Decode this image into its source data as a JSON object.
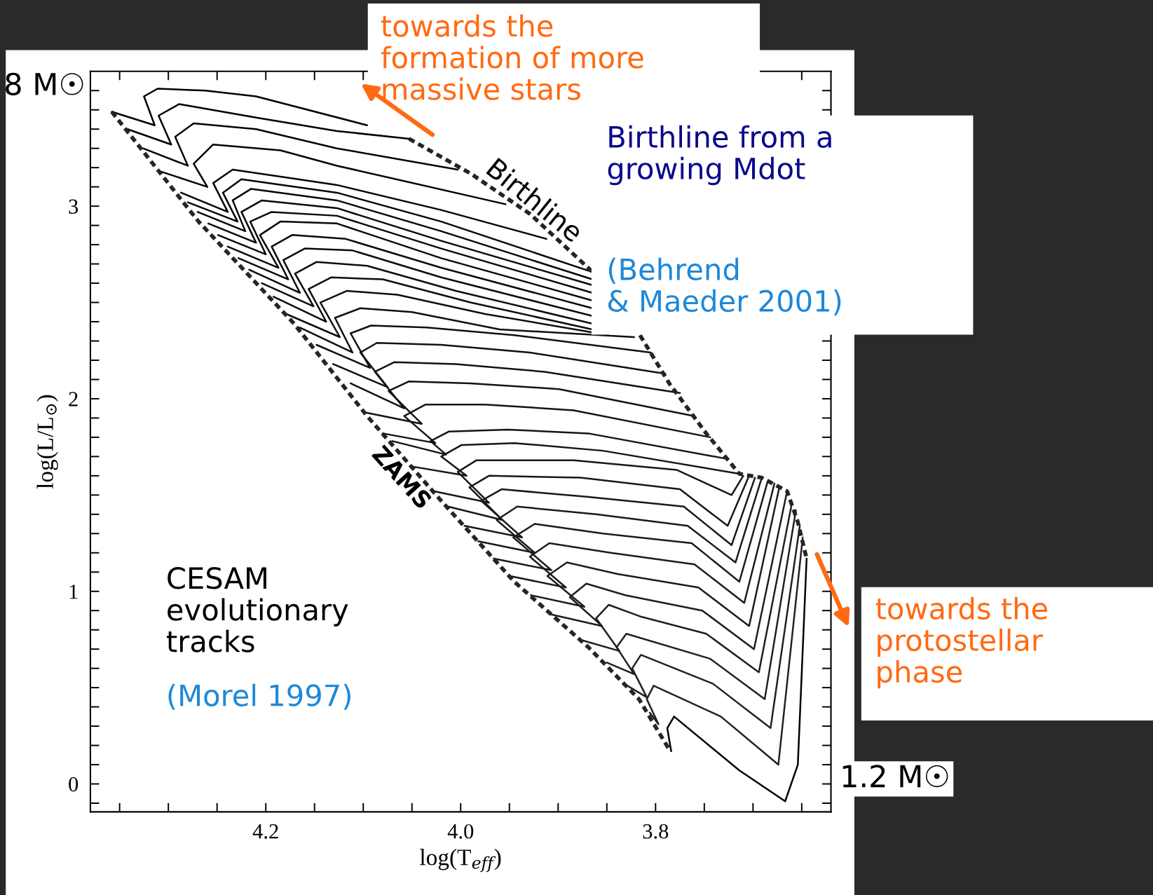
{
  "chart_data": {
    "type": "line",
    "xlabel": "log(T$_{eff}$)",
    "ylabel": "log(L/L$_{⊙}$)",
    "line_style": "solid",
    "xlim": [
      4.38,
      3.62
    ],
    "ylim": [
      -0.145,
      3.7
    ],
    "xticks": [
      {
        "value": 4.35,
        "label": null
      },
      {
        "value": 4.3,
        "label": null
      },
      {
        "value": 4.25,
        "label": null
      },
      4.2,
      {
        "value": 4.15,
        "label": null
      },
      {
        "value": 4.1,
        "label": null
      },
      {
        "value": 4.05,
        "label": null
      },
      {
        "value": 4.0,
        "label": "4.0"
      },
      {
        "value": 3.95,
        "label": null
      },
      {
        "value": 3.9,
        "label": null
      },
      {
        "value": 3.85,
        "label": null
      },
      3.8,
      {
        "value": 3.75,
        "label": null
      },
      {
        "value": 3.7,
        "label": null
      },
      {
        "value": 3.65,
        "label": null
      }
    ],
    "yticks": [
      {
        "value": -0.1,
        "label": null
      },
      0,
      {
        "value": 0.1,
        "label": null
      },
      {
        "value": 0.2,
        "label": null
      },
      {
        "value": 0.3,
        "label": null
      },
      {
        "value": 0.4,
        "label": null
      },
      {
        "value": 0.5,
        "label": null
      },
      {
        "value": 0.6,
        "label": null
      },
      {
        "value": 0.7,
        "label": null
      },
      {
        "value": 0.8,
        "label": null
      },
      {
        "value": 0.9,
        "label": null
      },
      1,
      {
        "value": 1.1,
        "label": null
      },
      {
        "value": 1.2,
        "label": null
      },
      {
        "value": 1.3,
        "label": null
      },
      {
        "value": 1.4,
        "label": null
      },
      {
        "value": 1.5,
        "label": null
      },
      {
        "value": 1.6,
        "label": null
      },
      {
        "value": 1.7,
        "label": null
      },
      {
        "value": 1.8,
        "label": null
      },
      {
        "value": 1.9,
        "label": null
      },
      2,
      {
        "value": 2.1,
        "label": null
      },
      {
        "value": 2.2,
        "label": null
      },
      {
        "value": 2.3,
        "label": null
      },
      {
        "value": 2.4,
        "label": null
      },
      {
        "value": 2.5,
        "label": null
      },
      {
        "value": 2.6,
        "label": null
      },
      {
        "value": 2.7,
        "label": null
      },
      {
        "value": 2.8,
        "label": null
      },
      {
        "value": 2.9,
        "label": null
      },
      3,
      {
        "value": 3.1,
        "label": null
      },
      {
        "value": 3.2,
        "label": null
      },
      {
        "value": 3.3,
        "label": null
      },
      {
        "value": 3.4,
        "label": null
      },
      {
        "value": 3.5,
        "label": null
      },
      {
        "value": 3.6,
        "label": null
      }
    ],
    "series": [
      {
        "name": "8 M☉",
        "color": "#000000",
        "x": [
          4.096,
          4.21,
          4.262,
          4.311,
          4.325,
          4.314,
          4.358
        ],
        "values": [
          3.42,
          3.57,
          3.6,
          3.61,
          3.57,
          3.42,
          3.49
        ]
      },
      {
        "color": "#010101",
        "x": [
          4.053,
          4.127,
          4.21,
          4.289,
          4.31,
          4.297,
          4.342
        ],
        "values": [
          3.35,
          3.39,
          3.46,
          3.53,
          3.47,
          3.32,
          3.4
        ]
      },
      {
        "color": "#020202",
        "x": [
          4.003,
          4.127,
          4.21,
          4.274,
          4.293,
          4.28,
          4.326
        ],
        "values": [
          3.19,
          3.3,
          3.4,
          3.43,
          3.36,
          3.21,
          3.3
        ]
      },
      {
        "color": "#030303",
        "x": [
          3.954,
          4.127,
          4.185,
          4.254,
          4.274,
          4.26,
          4.308
        ],
        "values": [
          3.01,
          3.21,
          3.29,
          3.32,
          3.22,
          3.1,
          3.18
        ]
      },
      {
        "color": "#040404",
        "x": [
          3.912,
          4.02,
          4.127,
          4.234,
          4.254,
          4.239,
          4.287
        ],
        "values": [
          2.83,
          2.98,
          3.11,
          3.19,
          3.12,
          2.97,
          3.07
        ]
      },
      {
        "color": "#050505",
        "x": [
          3.866,
          4.02,
          4.127,
          4.225,
          4.244,
          4.229,
          4.28
        ],
        "values": [
          2.66,
          2.92,
          3.07,
          3.14,
          3.07,
          2.92,
          3.02
        ]
      },
      {
        "color": "#060606",
        "x": [
          3.865,
          4.02,
          4.127,
          4.215,
          4.234,
          4.221,
          4.27
        ],
        "values": [
          2.62,
          2.87,
          3.03,
          3.09,
          3.03,
          2.87,
          2.97
        ]
      },
      {
        "color": "#070707",
        "x": [
          3.865,
          4.02,
          4.127,
          4.204,
          4.225,
          4.21,
          4.259
        ],
        "values": [
          2.59,
          2.82,
          2.99,
          3.03,
          2.97,
          2.81,
          2.91
        ]
      },
      {
        "color": "#080808",
        "x": [
          3.865,
          4.02,
          4.127,
          4.194,
          4.216,
          4.2,
          4.249
        ],
        "values": [
          2.55,
          2.78,
          2.95,
          2.97,
          2.92,
          2.75,
          2.85
        ]
      },
      {
        "color": "#090909",
        "x": [
          3.865,
          4.02,
          4.127,
          4.185,
          4.206,
          4.187,
          4.239
        ],
        "values": [
          2.51,
          2.73,
          2.91,
          2.92,
          2.85,
          2.68,
          2.79
        ]
      },
      {
        "color": "#0a0a0a",
        "x": [
          3.865,
          4.02,
          4.118,
          4.173,
          4.194,
          4.177,
          4.228
        ],
        "values": [
          2.47,
          2.68,
          2.83,
          2.85,
          2.79,
          2.62,
          2.73
        ]
      },
      {
        "color": "#0b0b0b",
        "x": [
          3.865,
          4.02,
          4.111,
          4.16,
          4.182,
          4.165,
          4.217
        ],
        "values": [
          2.43,
          2.63,
          2.77,
          2.78,
          2.72,
          2.55,
          2.67
        ]
      },
      {
        "color": "#0c0c0c",
        "x": [
          3.865,
          4.005,
          4.096,
          4.148,
          4.17,
          4.151,
          4.204
        ],
        "values": [
          2.39,
          2.56,
          2.69,
          2.71,
          2.65,
          2.48,
          2.6
        ]
      },
      {
        "color": "#0d0d0d",
        "x": [
          3.865,
          3.99,
          4.08,
          4.133,
          4.156,
          4.138,
          4.192
        ],
        "values": [
          2.36,
          2.5,
          2.62,
          2.63,
          2.57,
          2.4,
          2.53
        ]
      },
      {
        "color": "#0e0e0e",
        "x": [
          3.848,
          3.975,
          4.065,
          4.117,
          4.144,
          4.124,
          4.179
        ],
        "values": [
          2.33,
          2.44,
          2.54,
          2.56,
          2.5,
          2.32,
          2.44
        ]
      },
      {
        "color": "#0f0f0f",
        "x": [
          3.822,
          3.96,
          4.05,
          4.103,
          4.129,
          4.111,
          4.165
        ],
        "values": [
          2.32,
          2.36,
          2.45,
          2.47,
          2.42,
          2.24,
          2.37
        ]
      },
      {
        "color": "#101010",
        "x": [
          3.805,
          3.945,
          4.035,
          4.092,
          4.113,
          4.093,
          4.148
        ],
        "values": [
          2.24,
          2.33,
          2.37,
          2.38,
          2.34,
          2.16,
          2.28
        ]
      },
      {
        "color": "#111111",
        "x": [
          3.79,
          3.929,
          4.02,
          4.086,
          4.103,
          4.075,
          4.131
        ],
        "values": [
          2.13,
          2.24,
          2.28,
          2.29,
          2.24,
          2.06,
          2.18
        ]
      },
      {
        "color": "#121212",
        "x": [
          3.775,
          3.914,
          4.005,
          4.068,
          4.088,
          4.058,
          4.113
        ],
        "values": [
          2.03,
          2.14,
          2.18,
          2.19,
          2.14,
          1.95,
          2.08
        ]
      },
      {
        "color": "#131313",
        "x": [
          3.76,
          3.899,
          3.99,
          4.053,
          4.074,
          4.04,
          4.099
        ],
        "values": [
          1.91,
          2.05,
          2.08,
          2.09,
          2.04,
          1.87,
          1.93
        ]
      },
      {
        "color": "#141414",
        "x": [
          3.744,
          3.884,
          3.975,
          4.036,
          4.058,
          4.026,
          4.08
        ],
        "values": [
          1.8,
          1.94,
          1.97,
          1.97,
          1.91,
          1.77,
          1.82
        ]
      },
      {
        "color": "#151515",
        "x": [
          3.729,
          3.869,
          3.952,
          4.012,
          4.031,
          4.015,
          4.07
        ],
        "values": [
          1.69,
          1.82,
          1.84,
          1.83,
          1.78,
          1.71,
          1.78
        ]
      },
      {
        "color": "#161616",
        "x": [
          3.714,
          3.854,
          3.945,
          3.999,
          4.02,
          3.994,
          4.052
        ],
        "values": [
          1.61,
          1.73,
          1.77,
          1.76,
          1.7,
          1.6,
          1.65
        ]
      },
      {
        "color": "#171717",
        "x": [
          3.71,
          3.722,
          3.778,
          3.884,
          3.984,
          4.003,
          3.971,
          4.028
        ],
        "values": [
          1.6,
          1.5,
          1.63,
          1.68,
          1.68,
          1.62,
          1.46,
          1.52
        ]
      },
      {
        "color": "#181818",
        "x": [
          3.704,
          3.726,
          3.775,
          3.877,
          3.971,
          3.991,
          3.957,
          4.013
        ],
        "values": [
          1.6,
          1.34,
          1.53,
          1.59,
          1.6,
          1.54,
          1.37,
          1.44
        ]
      },
      {
        "color": "#191919",
        "x": [
          3.698,
          3.722,
          3.771,
          3.869,
          3.958,
          3.979,
          3.937,
          3.996
        ],
        "values": [
          1.59,
          1.24,
          1.44,
          1.49,
          1.53,
          1.47,
          1.28,
          1.34
        ]
      },
      {
        "color": "#1a1a1a",
        "x": [
          3.691,
          3.718,
          3.767,
          3.861,
          3.942,
          3.963,
          3.924,
          3.982
        ],
        "values": [
          1.59,
          1.15,
          1.34,
          1.4,
          1.44,
          1.37,
          1.2,
          1.26
        ]
      },
      {
        "color": "#1b1b1b",
        "x": [
          3.685,
          3.714,
          3.763,
          3.854,
          3.924,
          3.946,
          3.907,
          3.966
        ],
        "values": [
          1.57,
          1.05,
          1.25,
          1.3,
          1.35,
          1.28,
          1.11,
          1.17
        ]
      },
      {
        "color": "#1c1c1c",
        "x": [
          3.678,
          3.709,
          3.76,
          3.846,
          3.909,
          3.929,
          3.892,
          3.95
        ],
        "values": [
          1.56,
          0.94,
          1.14,
          1.2,
          1.25,
          1.18,
          1.02,
          1.08
        ]
      },
      {
        "color": "#1d1d1d",
        "x": [
          3.673,
          3.704,
          3.756,
          3.839,
          3.891,
          3.911,
          3.873,
          3.928
        ],
        "values": [
          1.54,
          0.82,
          1.02,
          1.09,
          1.15,
          1.08,
          0.92,
          0.98
        ]
      },
      {
        "color": "#1e1e1e",
        "x": [
          3.665,
          3.699,
          3.752,
          3.831,
          3.871,
          3.888,
          3.855,
          3.907
        ],
        "values": [
          1.52,
          0.7,
          0.9,
          0.98,
          1.04,
          0.97,
          0.82,
          0.88
        ]
      },
      {
        "color": "#1f1f1f",
        "x": [
          3.66,
          3.694,
          3.748,
          3.816,
          3.848,
          3.861,
          3.837,
          3.878
        ],
        "values": [
          1.46,
          0.58,
          0.78,
          0.87,
          0.93,
          0.86,
          0.69,
          0.75
        ]
      },
      {
        "color": "#202020",
        "x": [
          3.656,
          3.688,
          3.744,
          3.83,
          3.84,
          3.822,
          3.85
        ],
        "values": [
          1.42,
          0.44,
          0.65,
          0.78,
          0.71,
          0.57,
          0.63
        ]
      },
      {
        "color": "#212121",
        "x": [
          3.652,
          3.682,
          3.741,
          3.815,
          3.824,
          3.809,
          3.829
        ],
        "values": [
          1.34,
          0.29,
          0.52,
          0.67,
          0.6,
          0.45,
          0.51
        ]
      },
      {
        "color": "#222222",
        "x": [
          3.649,
          3.674,
          3.733,
          3.802,
          3.809,
          3.797,
          3.806
        ],
        "values": [
          1.28,
          0.1,
          0.35,
          0.51,
          0.44,
          0.31,
          0.37
        ]
      },
      {
        "name": "1.2 M☉",
        "color": "#000000",
        "x": [
          3.645,
          3.654,
          3.667,
          3.714,
          3.781,
          3.788,
          3.784
        ],
        "values": [
          1.17,
          0.1,
          -0.09,
          0.07,
          0.35,
          0.29,
          0.17
        ]
      },
      {
        "color": "#242424",
        "line_style": "dashed",
        "x": [
          4.053,
          3.99,
          3.929,
          3.865,
          3.84,
          3.816,
          3.786,
          3.748,
          3.714,
          3.691,
          3.665,
          3.654,
          3.645
        ],
        "values": [
          3.35,
          3.17,
          2.96,
          2.66,
          null,
          2.33,
          2.08,
          1.82,
          1.61,
          1.59,
          1.52,
          1.36,
          1.17
        ]
      },
      {
        "color": "#252525",
        "line_style": "dashed",
        "x": [
          4.358,
          4.269,
          4.171,
          4.096,
          4.02,
          3.945,
          3.869,
          3.817,
          3.785
        ],
        "values": [
          3.49,
          2.92,
          2.39,
          1.91,
          1.47,
          1.05,
          0.71,
          0.44,
          0.17
        ]
      }
    ],
    "annotations": [
      "towards the\nformation of more\nmassive stars",
      "Birthline from a\ngrowing Mdot",
      "(Behrend\n& Maeder 2001)",
      "CESAM\nevolutionary\ntracks",
      "(Morel 1997)",
      "towards the\nprotostellar\nphase",
      "Birthline",
      "ZAMS"
    ]
  }
}
